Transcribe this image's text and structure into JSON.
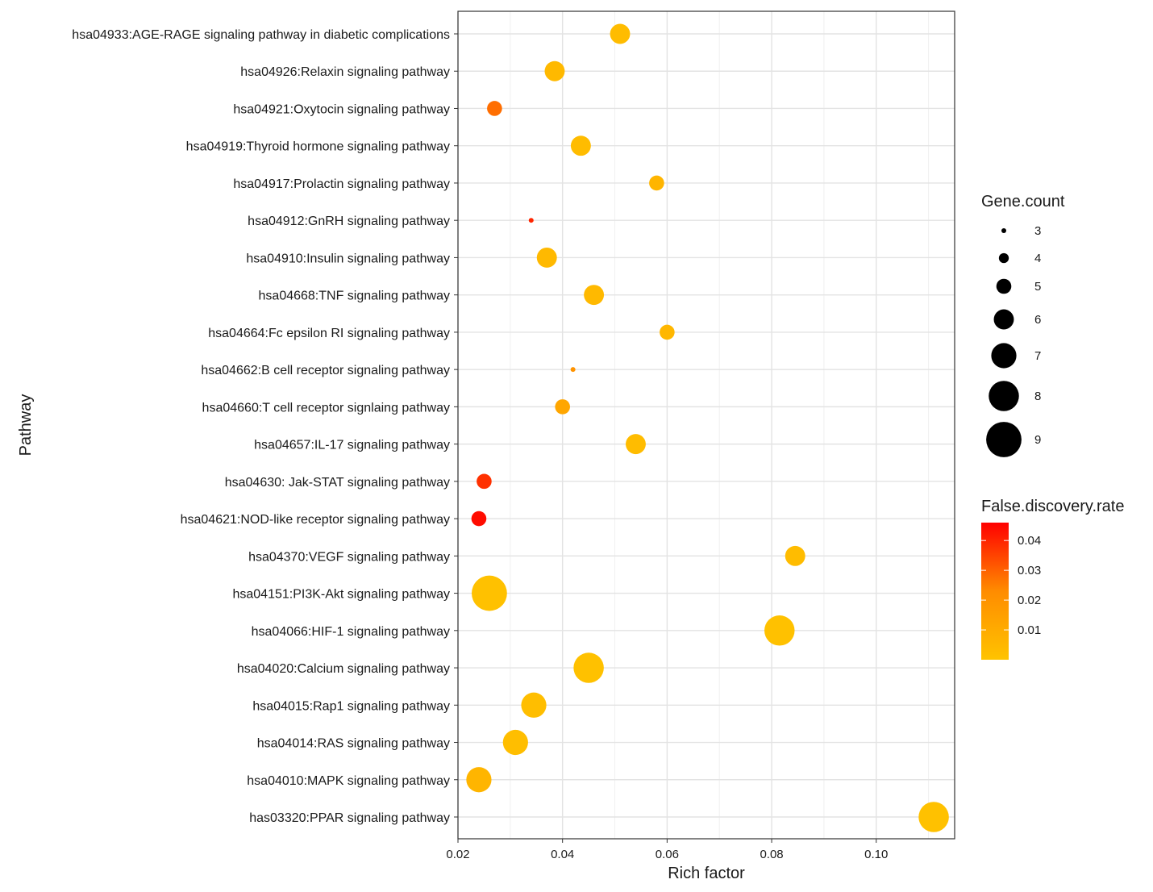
{
  "chart_data": {
    "type": "scatter",
    "xlabel": "Rich factor",
    "ylabel": "Pathway",
    "xlim": [
      0.02,
      0.115
    ],
    "x_ticks": [
      0.02,
      0.04,
      0.06,
      0.08,
      0.1
    ],
    "x_tick_labels": [
      "0.02",
      "0.04",
      "0.06",
      "0.08",
      "0.10"
    ],
    "grid": true,
    "points": [
      {
        "pathway": "hsa04933:AGE-RAGE signaling pathway in diabetic complications",
        "rich_factor": 0.051,
        "gene_count": 6,
        "fdr": 0.003
      },
      {
        "pathway": "hsa04926:Relaxin signaling pathway",
        "rich_factor": 0.0385,
        "gene_count": 6,
        "fdr": 0.004
      },
      {
        "pathway": "hsa04921:Oxytocin signaling pathway",
        "rich_factor": 0.027,
        "gene_count": 5,
        "fdr": 0.028
      },
      {
        "pathway": "hsa04919:Thyroid hormone signaling pathway",
        "rich_factor": 0.0435,
        "gene_count": 6,
        "fdr": 0.003
      },
      {
        "pathway": "hsa04917:Prolactin signaling pathway",
        "rich_factor": 0.058,
        "gene_count": 5,
        "fdr": 0.006
      },
      {
        "pathway": "hsa04912:GnRH signaling pathway",
        "rich_factor": 0.034,
        "gene_count": 3,
        "fdr": 0.04
      },
      {
        "pathway": "hsa04910:Insulin signaling pathway",
        "rich_factor": 0.037,
        "gene_count": 6,
        "fdr": 0.004
      },
      {
        "pathway": "hsa04668:TNF signaling pathway",
        "rich_factor": 0.046,
        "gene_count": 6,
        "fdr": 0.004
      },
      {
        "pathway": "hsa04664:Fc epsilon RI signaling pathway",
        "rich_factor": 0.06,
        "gene_count": 5,
        "fdr": 0.005
      },
      {
        "pathway": "hsa04662:B cell receptor signaling pathway",
        "rich_factor": 0.042,
        "gene_count": 3,
        "fdr": 0.02
      },
      {
        "pathway": "hsa04660:T cell receptor signlaing pathway",
        "rich_factor": 0.04,
        "gene_count": 5,
        "fdr": 0.012
      },
      {
        "pathway": "hsa04657:IL-17 signaling pathway",
        "rich_factor": 0.054,
        "gene_count": 6,
        "fdr": 0.003
      },
      {
        "pathway": "hsa04630: Jak-STAT signaling pathway",
        "rich_factor": 0.025,
        "gene_count": 5,
        "fdr": 0.038
      },
      {
        "pathway": "hsa04621:NOD-like receptor signaling pathway",
        "rich_factor": 0.024,
        "gene_count": 5,
        "fdr": 0.044
      },
      {
        "pathway": "hsa04370:VEGF signaling pathway",
        "rich_factor": 0.0845,
        "gene_count": 6,
        "fdr": 0.003
      },
      {
        "pathway": "hsa04151:PI3K-Akt signaling pathway",
        "rich_factor": 0.026,
        "gene_count": 9,
        "fdr": 0.001
      },
      {
        "pathway": "hsa04066:HIF-1 signaling pathway",
        "rich_factor": 0.0815,
        "gene_count": 8,
        "fdr": 0.001
      },
      {
        "pathway": "hsa04020:Calcium signaling pathway",
        "rich_factor": 0.045,
        "gene_count": 8,
        "fdr": 0.001
      },
      {
        "pathway": "hsa04015:Rap1 signaling pathway",
        "rich_factor": 0.0345,
        "gene_count": 7,
        "fdr": 0.002
      },
      {
        "pathway": "hsa04014:RAS signaling pathway",
        "rich_factor": 0.031,
        "gene_count": 7,
        "fdr": 0.002
      },
      {
        "pathway": "hsa04010:MAPK signaling pathway",
        "rich_factor": 0.024,
        "gene_count": 7,
        "fdr": 0.006
      },
      {
        "pathway": "has03320:PPAR signaling pathway",
        "rich_factor": 0.111,
        "gene_count": 8,
        "fdr": 0.001
      }
    ],
    "size_legend": {
      "title": "Gene.count",
      "values": [
        3,
        4,
        5,
        6,
        7,
        8,
        9
      ],
      "labels": [
        "3",
        "4",
        "5",
        "6",
        "7",
        "8",
        "9"
      ]
    },
    "color_legend": {
      "title": "False.discovery.rate",
      "range": [
        0.0,
        0.046
      ],
      "ticks": [
        0.04,
        0.03,
        0.02,
        0.01
      ],
      "tick_labels": [
        "0.04",
        "0.03",
        "0.02",
        "0.01"
      ],
      "low_color": "#FFC300",
      "mid_color": "#FF8C00",
      "high_color": "#FF0000"
    }
  }
}
